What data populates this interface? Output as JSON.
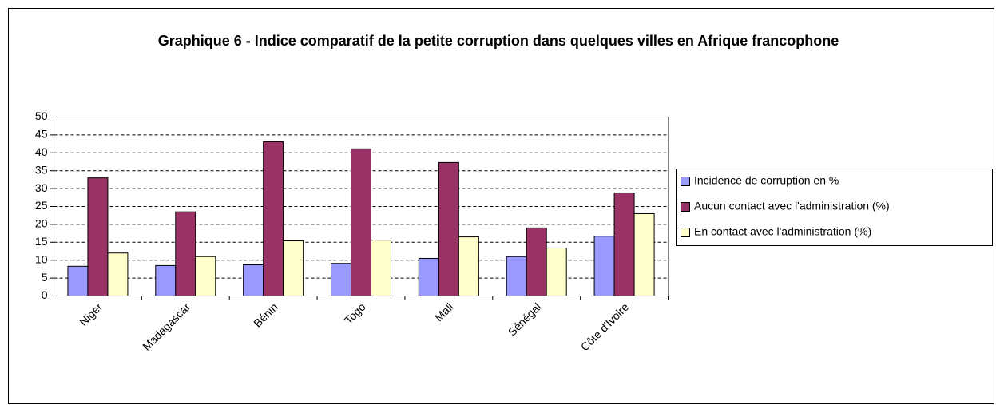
{
  "chart_data": {
    "type": "bar",
    "title": "Graphique 6 - Indice comparatif de la petite corruption dans quelques villes en Afrique francophone",
    "categories": [
      "Niger",
      "Madagascar",
      "Bénin",
      "Togo",
      "Mali",
      "Sénégal",
      "Côte d'Ivoire"
    ],
    "series": [
      {
        "name": "Incidence de corruption en %",
        "color": "#9999ff",
        "values": [
          8.3,
          8.5,
          8.7,
          9.1,
          10.5,
          11,
          16.7
        ]
      },
      {
        "name": "Aucun contact avec l'administration (%)",
        "color": "#993366",
        "values": [
          33,
          23.5,
          43.1,
          41.1,
          37.3,
          19,
          28.8
        ]
      },
      {
        "name": "En contact avec l'administration (%)",
        "color": "#ffffcc",
        "values": [
          12,
          11,
          15.4,
          15.6,
          16.5,
          13.4,
          23
        ]
      }
    ],
    "ylim": [
      0,
      50
    ],
    "yticks": [
      0,
      5,
      10,
      15,
      20,
      25,
      30,
      35,
      40,
      45,
      50
    ],
    "grid": true,
    "legend": "right"
  }
}
